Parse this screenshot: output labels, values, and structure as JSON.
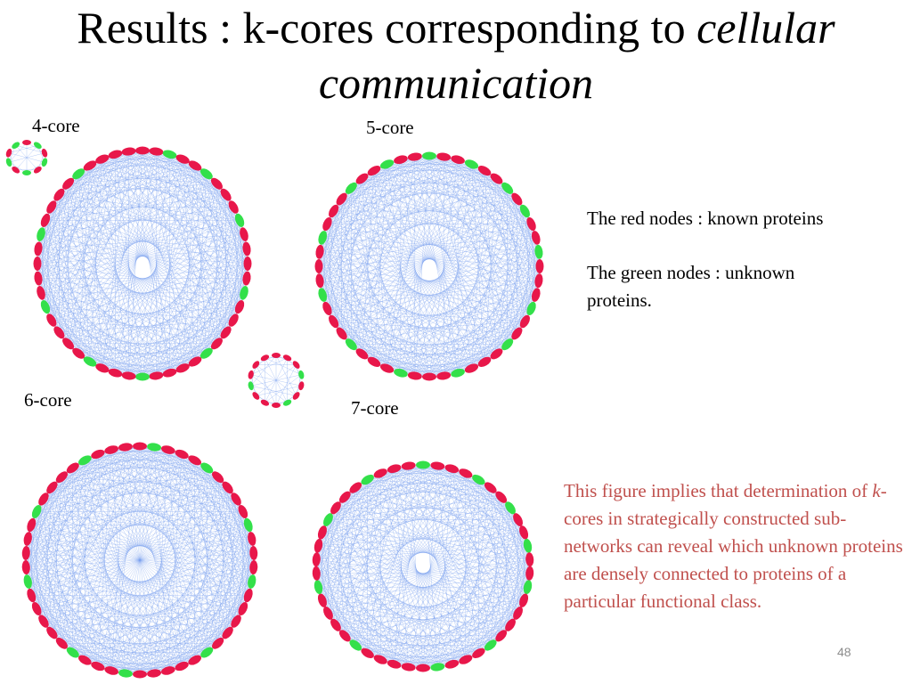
{
  "title": {
    "prefix": "Results : k-cores corresponding to ",
    "italic_line1": "cellular",
    "italic_line2": "communication"
  },
  "core_labels": {
    "core4": "4-core",
    "core5": "5-core",
    "core6": "6-core",
    "core7": "7-core"
  },
  "legend": {
    "red": "The red nodes :  known proteins",
    "green_line1": "The green nodes : unknown",
    "green_line2": "proteins."
  },
  "note": {
    "part1": "This figure implies that determination of ",
    "italic": "k",
    "part2": "-cores in strategically constructed sub-networks can reveal which unknown proteins are densely connected to proteins of a particular functional class."
  },
  "slide_number": "48",
  "colors": {
    "known_protein_node": "#e8174a",
    "unknown_protein_node": "#33e04a",
    "edge": "#7aa0ee",
    "note_text": "#c0504d"
  }
}
